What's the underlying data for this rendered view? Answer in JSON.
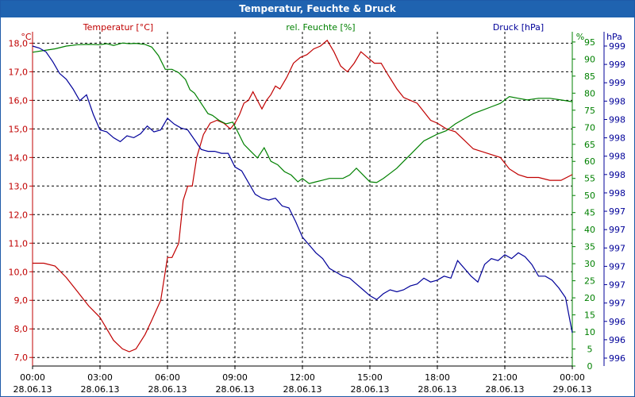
{
  "window": {
    "title": "Temperatur, Feuchte & Druck"
  },
  "colors": {
    "temperature": "#c00000",
    "humidity": "#008000",
    "pressure": "#000099",
    "grid": "#000000",
    "titlebar": "#1f63b0"
  },
  "chart_data": {
    "type": "line",
    "title": "Temperatur, Feuchte & Druck",
    "x_range_hours": [
      0,
      24
    ],
    "x_ticks": [
      {
        "hour": 0,
        "time": "00:00",
        "date": "28.06.13"
      },
      {
        "hour": 3,
        "time": "03:00",
        "date": "28.06.13"
      },
      {
        "hour": 6,
        "time": "06:00",
        "date": "28.06.13"
      },
      {
        "hour": 9,
        "time": "09:00",
        "date": "28.06.13"
      },
      {
        "hour": 12,
        "time": "12:00",
        "date": "28.06.13"
      },
      {
        "hour": 15,
        "time": "15:00",
        "date": "28.06.13"
      },
      {
        "hour": 18,
        "time": "18:00",
        "date": "28.06.13"
      },
      {
        "hour": 21,
        "time": "21:00",
        "date": "28.06.13"
      },
      {
        "hour": 24,
        "time": "00:00",
        "date": "29.06.13"
      }
    ],
    "axes": {
      "temperature": {
        "label": "Temperatur [°C]",
        "unit": "°C",
        "range": [
          6.7,
          18.4
        ],
        "ticks": [
          "7,0",
          "8,0",
          "9,0",
          "10,0",
          "11,0",
          "12,0",
          "13,0",
          "14,0",
          "15,0",
          "16,0",
          "17,0",
          "18,0"
        ],
        "tick_values": [
          7,
          8,
          9,
          10,
          11,
          12,
          13,
          14,
          15,
          16,
          17,
          18
        ]
      },
      "humidity": {
        "label": "rel. Feuchte [%]",
        "unit": "%",
        "range": [
          0,
          98
        ],
        "ticks": [
          "0",
          "5",
          "10",
          "15",
          "20",
          "25",
          "30",
          "35",
          "40",
          "45",
          "50",
          "55",
          "60",
          "65",
          "70",
          "75",
          "80",
          "85",
          "90",
          "95"
        ],
        "tick_values": [
          0,
          5,
          10,
          15,
          20,
          25,
          30,
          35,
          40,
          45,
          50,
          55,
          60,
          65,
          70,
          75,
          80,
          85,
          90,
          95
        ]
      },
      "pressure": {
        "label": "Druck [hPa]",
        "unit": "hPa",
        "range": [
          0,
          16
        ],
        "ticks": [
          "996",
          "996",
          "996",
          "997",
          "997",
          "997",
          "997",
          "997",
          "997",
          "998",
          "998",
          "998",
          "998",
          "998",
          "998",
          "999",
          "999",
          "999"
        ],
        "tick_values": [
          0,
          1,
          2,
          3,
          4,
          5,
          6,
          7,
          8,
          9,
          10,
          11,
          12,
          13,
          14,
          15,
          16,
          17
        ]
      }
    },
    "series": [
      {
        "name": "Temperatur",
        "axis": "temperature",
        "color": "#c00000",
        "points": [
          [
            0,
            10.3
          ],
          [
            0.5,
            10.3
          ],
          [
            1,
            10.2
          ],
          [
            1.5,
            9.8
          ],
          [
            2,
            9.3
          ],
          [
            2.5,
            8.8
          ],
          [
            3,
            8.4
          ],
          [
            3.3,
            8.0
          ],
          [
            3.6,
            7.6
          ],
          [
            4,
            7.3
          ],
          [
            4.3,
            7.2
          ],
          [
            4.6,
            7.3
          ],
          [
            5,
            7.8
          ],
          [
            5.3,
            8.3
          ],
          [
            5.7,
            9.0
          ],
          [
            6,
            10.5
          ],
          [
            6.2,
            10.5
          ],
          [
            6.5,
            11.0
          ],
          [
            6.7,
            12.5
          ],
          [
            6.9,
            13.0
          ],
          [
            7.1,
            13.0
          ],
          [
            7.3,
            14.0
          ],
          [
            7.6,
            14.8
          ],
          [
            7.9,
            15.2
          ],
          [
            8.2,
            15.3
          ],
          [
            8.5,
            15.2
          ],
          [
            8.8,
            15.0
          ],
          [
            9,
            15.2
          ],
          [
            9.2,
            15.5
          ],
          [
            9.4,
            15.9
          ],
          [
            9.6,
            16.0
          ],
          [
            9.8,
            16.3
          ],
          [
            10,
            16.0
          ],
          [
            10.2,
            15.7
          ],
          [
            10.4,
            16.0
          ],
          [
            10.6,
            16.2
          ],
          [
            10.8,
            16.5
          ],
          [
            11,
            16.4
          ],
          [
            11.3,
            16.8
          ],
          [
            11.6,
            17.3
          ],
          [
            11.9,
            17.5
          ],
          [
            12.2,
            17.6
          ],
          [
            12.5,
            17.8
          ],
          [
            12.8,
            17.9
          ],
          [
            13.1,
            18.1
          ],
          [
            13.4,
            17.7
          ],
          [
            13.7,
            17.2
          ],
          [
            14,
            17.0
          ],
          [
            14.3,
            17.3
          ],
          [
            14.6,
            17.7
          ],
          [
            14.9,
            17.5
          ],
          [
            15.2,
            17.3
          ],
          [
            15.5,
            17.3
          ],
          [
            15.8,
            16.9
          ],
          [
            16.2,
            16.4
          ],
          [
            16.5,
            16.1
          ],
          [
            16.8,
            16.0
          ],
          [
            17.1,
            15.9
          ],
          [
            17.4,
            15.6
          ],
          [
            17.7,
            15.3
          ],
          [
            18,
            15.2
          ],
          [
            18.4,
            15.0
          ],
          [
            18.8,
            14.9
          ],
          [
            19.2,
            14.6
          ],
          [
            19.6,
            14.3
          ],
          [
            20,
            14.2
          ],
          [
            20.4,
            14.1
          ],
          [
            20.8,
            14.0
          ],
          [
            21.2,
            13.6
          ],
          [
            21.6,
            13.4
          ],
          [
            22,
            13.3
          ],
          [
            22.5,
            13.3
          ],
          [
            23,
            13.2
          ],
          [
            23.5,
            13.2
          ],
          [
            24,
            13.4
          ]
        ]
      },
      {
        "name": "rel. Feuchte",
        "axis": "humidity",
        "color": "#008000",
        "points": [
          [
            0,
            92
          ],
          [
            0.5,
            92.5
          ],
          [
            1,
            93
          ],
          [
            1.5,
            93.8
          ],
          [
            2,
            94.2
          ],
          [
            2.5,
            94.3
          ],
          [
            3,
            94.2
          ],
          [
            3.3,
            94.5
          ],
          [
            3.6,
            94
          ],
          [
            4,
            94.7
          ],
          [
            4.3,
            94.5
          ],
          [
            4.6,
            94.6
          ],
          [
            5,
            94.3
          ],
          [
            5.3,
            93.5
          ],
          [
            5.6,
            91
          ],
          [
            5.9,
            87
          ],
          [
            6.2,
            87
          ],
          [
            6.5,
            86
          ],
          [
            6.8,
            84
          ],
          [
            7,
            81
          ],
          [
            7.2,
            80
          ],
          [
            7.5,
            77
          ],
          [
            7.8,
            74
          ],
          [
            8,
            73.5
          ],
          [
            8.3,
            72
          ],
          [
            8.6,
            71
          ],
          [
            8.9,
            71.5
          ],
          [
            9.1,
            69
          ],
          [
            9.4,
            65
          ],
          [
            9.7,
            63
          ],
          [
            10,
            61
          ],
          [
            10.3,
            64
          ],
          [
            10.6,
            60
          ],
          [
            10.9,
            59
          ],
          [
            11.2,
            57
          ],
          [
            11.5,
            56
          ],
          [
            11.8,
            54
          ],
          [
            12,
            55
          ],
          [
            12.3,
            53.5
          ],
          [
            12.6,
            54
          ],
          [
            12.9,
            54.5
          ],
          [
            13.2,
            55
          ],
          [
            13.5,
            55
          ],
          [
            13.8,
            55
          ],
          [
            14.1,
            56
          ],
          [
            14.4,
            58
          ],
          [
            14.7,
            56
          ],
          [
            15,
            54
          ],
          [
            15.3,
            53.8
          ],
          [
            15.6,
            55
          ],
          [
            15.9,
            56.5
          ],
          [
            16.2,
            58
          ],
          [
            16.5,
            60
          ],
          [
            16.8,
            62
          ],
          [
            17.1,
            64
          ],
          [
            17.4,
            66
          ],
          [
            17.7,
            67
          ],
          [
            18,
            68
          ],
          [
            18.4,
            69
          ],
          [
            18.8,
            71
          ],
          [
            19.2,
            72.5
          ],
          [
            19.6,
            74
          ],
          [
            20,
            75
          ],
          [
            20.4,
            76
          ],
          [
            20.8,
            77
          ],
          [
            21.2,
            79
          ],
          [
            21.6,
            78.5
          ],
          [
            22,
            78
          ],
          [
            22.5,
            78.5
          ],
          [
            23,
            78.5
          ],
          [
            23.5,
            78
          ],
          [
            24,
            77.5
          ]
        ]
      },
      {
        "name": "Druck",
        "axis": "pressure",
        "color": "#000099",
        "points": [
          [
            0,
            16
          ],
          [
            0.3,
            15.9
          ],
          [
            0.6,
            15.7
          ],
          [
            0.9,
            15.2
          ],
          [
            1.2,
            14.6
          ],
          [
            1.5,
            14.3
          ],
          [
            1.8,
            13.8
          ],
          [
            2.1,
            13.2
          ],
          [
            2.4,
            13.5
          ],
          [
            2.7,
            12.5
          ],
          [
            3,
            11.7
          ],
          [
            3.3,
            11.6
          ],
          [
            3.6,
            11.3
          ],
          [
            3.9,
            11.1
          ],
          [
            4.2,
            11.4
          ],
          [
            4.5,
            11.3
          ],
          [
            4.8,
            11.5
          ],
          [
            5.1,
            11.9
          ],
          [
            5.4,
            11.6
          ],
          [
            5.7,
            11.7
          ],
          [
            6,
            12.3
          ],
          [
            6.3,
            12.0
          ],
          [
            6.6,
            11.8
          ],
          [
            6.9,
            11.7
          ],
          [
            7.2,
            11.2
          ],
          [
            7.5,
            10.7
          ],
          [
            7.8,
            10.6
          ],
          [
            8.1,
            10.6
          ],
          [
            8.4,
            10.5
          ],
          [
            8.7,
            10.5
          ],
          [
            9,
            9.8
          ],
          [
            9.3,
            9.6
          ],
          [
            9.6,
            9.0
          ],
          [
            9.9,
            8.4
          ],
          [
            10.2,
            8.2
          ],
          [
            10.5,
            8.1
          ],
          [
            10.8,
            8.2
          ],
          [
            11.1,
            7.8
          ],
          [
            11.4,
            7.7
          ],
          [
            11.7,
            7.0
          ],
          [
            12,
            6.2
          ],
          [
            12.3,
            5.8
          ],
          [
            12.6,
            5.4
          ],
          [
            12.9,
            5.1
          ],
          [
            13.2,
            4.6
          ],
          [
            13.5,
            4.4
          ],
          [
            13.8,
            4.2
          ],
          [
            14.1,
            4.1
          ],
          [
            14.4,
            3.8
          ],
          [
            14.7,
            3.5
          ],
          [
            15,
            3.2
          ],
          [
            15.3,
            3.0
          ],
          [
            15.6,
            3.3
          ],
          [
            15.9,
            3.5
          ],
          [
            16.2,
            3.4
          ],
          [
            16.5,
            3.5
          ],
          [
            16.8,
            3.7
          ],
          [
            17.1,
            3.8
          ],
          [
            17.4,
            4.1
          ],
          [
            17.7,
            3.9
          ],
          [
            18,
            4.0
          ],
          [
            18.3,
            4.2
          ],
          [
            18.6,
            4.1
          ],
          [
            18.9,
            5.0
          ],
          [
            19.2,
            4.6
          ],
          [
            19.5,
            4.2
          ],
          [
            19.8,
            3.9
          ],
          [
            20.1,
            4.8
          ],
          [
            20.4,
            5.1
          ],
          [
            20.7,
            5.0
          ],
          [
            21,
            5.3
          ],
          [
            21.3,
            5.1
          ],
          [
            21.6,
            5.4
          ],
          [
            21.9,
            5.2
          ],
          [
            22.2,
            4.8
          ],
          [
            22.5,
            4.2
          ],
          [
            22.8,
            4.2
          ],
          [
            23.1,
            4.0
          ],
          [
            23.4,
            3.6
          ],
          [
            23.7,
            3.1
          ],
          [
            24,
            1.3
          ]
        ]
      }
    ]
  }
}
